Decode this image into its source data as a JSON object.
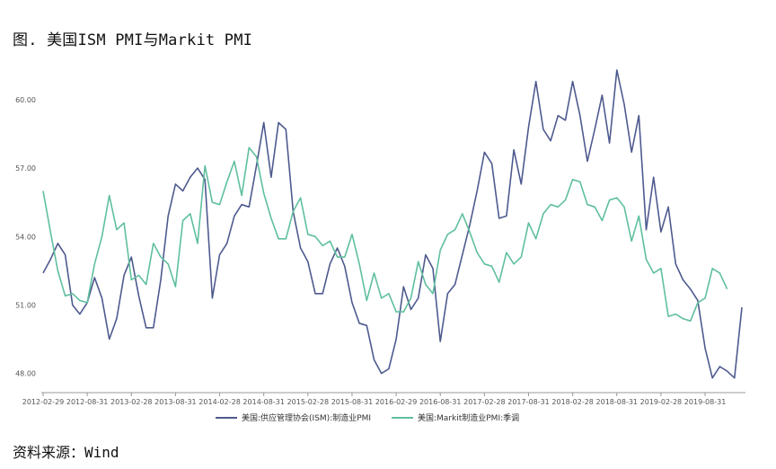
{
  "header": {
    "title": "图. 美国ISM PMI与Markit PMI"
  },
  "footer": {
    "source": "资料来源：Wind"
  },
  "chart_data": {
    "type": "line",
    "x_ticks": [
      "2012-02-29",
      "2012-08-31",
      "2013-02-28",
      "2013-08-31",
      "2014-02-28",
      "2014-08-31",
      "2015-02-28",
      "2015-08-31",
      "2016-02-29",
      "2016-08-31",
      "2017-02-28",
      "2017-08-31",
      "2018-02-28",
      "2018-08-31",
      "2019-02-28",
      "2019-08-31"
    ],
    "y_ticks": [
      "48.00",
      "51.00",
      "54.00",
      "57.00",
      "60.00"
    ],
    "ylim": [
      47.0,
      62.5
    ],
    "grid": false,
    "legend_position": "bottom",
    "x_start": "2012-02",
    "series": [
      {
        "name": "美国:供应管理协会(ISM):制造业PMI",
        "color": "#4e5a8e",
        "values": [
          52.4,
          53.0,
          53.7,
          53.2,
          51.0,
          50.6,
          51.1,
          52.2,
          51.3,
          49.5,
          50.4,
          52.3,
          53.1,
          51.4,
          50.0,
          50.0,
          52.1,
          54.9,
          56.3,
          56.0,
          56.6,
          57.0,
          56.5,
          51.3,
          53.2,
          53.7,
          54.9,
          55.4,
          55.3,
          57.1,
          59.0,
          56.6,
          59.0,
          58.7,
          55.1,
          53.5,
          52.9,
          51.5,
          51.5,
          52.8,
          53.5,
          52.7,
          51.1,
          50.2,
          50.1,
          48.6,
          48.0,
          48.2,
          49.5,
          51.8,
          50.8,
          51.3,
          53.2,
          52.6,
          49.4,
          51.5,
          51.9,
          53.2,
          54.5,
          56.0,
          57.7,
          57.2,
          54.8,
          54.9,
          57.8,
          56.3,
          58.8,
          60.8,
          58.7,
          58.2,
          59.3,
          59.1,
          60.8,
          59.3,
          57.3,
          58.7,
          60.2,
          58.1,
          61.3,
          59.8,
          57.7,
          59.3,
          54.3,
          56.6,
          54.2,
          55.3,
          52.8,
          52.1,
          51.7,
          51.2,
          49.1,
          47.8,
          48.3,
          48.1,
          47.8,
          50.9
        ]
      },
      {
        "name": "美国:Markit制造业PMI:季调",
        "color": "#5fbf9f",
        "values": [
          56.0,
          54.2,
          52.5,
          51.4,
          51.5,
          51.2,
          51.1,
          52.8,
          54.0,
          55.8,
          54.3,
          54.6,
          52.1,
          52.3,
          51.9,
          53.7,
          53.1,
          52.8,
          51.8,
          54.7,
          55.0,
          53.7,
          57.1,
          55.5,
          55.4,
          56.4,
          57.3,
          55.8,
          57.9,
          57.5,
          55.9,
          54.8,
          53.9,
          53.9,
          55.1,
          55.7,
          54.1,
          54.0,
          53.6,
          53.8,
          53.1,
          53.1,
          54.1,
          52.8,
          51.2,
          52.4,
          51.3,
          51.5,
          50.7,
          50.7,
          51.3,
          52.9,
          51.9,
          51.5,
          53.4,
          54.1,
          54.3,
          55.0,
          54.2,
          53.3,
          52.8,
          52.7,
          52.0,
          53.3,
          52.8,
          53.1,
          54.6,
          53.9,
          55.0,
          55.4,
          55.3,
          55.6,
          56.5,
          56.4,
          55.4,
          55.3,
          54.7,
          55.6,
          55.7,
          55.3,
          53.8,
          54.9,
          53.0,
          52.4,
          52.6,
          50.5,
          50.6,
          50.4,
          50.3,
          51.1,
          51.3,
          52.6,
          52.4,
          51.7
        ]
      }
    ]
  }
}
